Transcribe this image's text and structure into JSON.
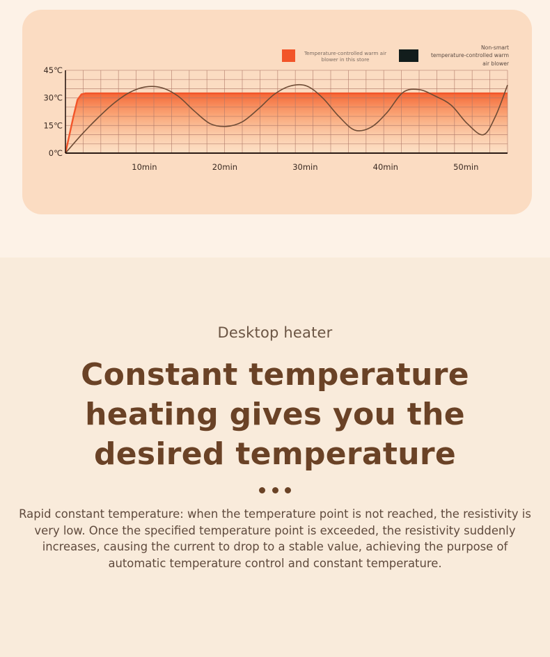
{
  "section": {
    "subtitle": "Desktop heater",
    "headline": "Constant temperature heating gives you the desired temperature",
    "body": "Rapid constant temperature: when the temperature point is not reached, the resistivity is very low. Once the specified temperature point is exceeded, the resistivity suddenly increases, causing the current to drop to a stable value, achieving the purpose of automatic temperature control and constant temperature."
  },
  "chart_data": {
    "type": "line",
    "xlabel": "",
    "ylabel": "",
    "xlim": [
      0,
      55
    ],
    "ylim": [
      0,
      45
    ],
    "x_ticks": [
      10,
      20,
      30,
      40,
      50
    ],
    "x_tick_labels": [
      "10min",
      "20min",
      "30min",
      "40min",
      "50min"
    ],
    "y_ticks": [
      0,
      15,
      30,
      45
    ],
    "y_tick_labels": [
      "0℃",
      "15℃",
      "30℃",
      "45℃"
    ],
    "grid": true,
    "legend_position": "top-right",
    "series": [
      {
        "name": "Temperature-controlled warm air blower in this store",
        "color": "#f2552a",
        "x": [
          0,
          1,
          1.5,
          2,
          2.5,
          55
        ],
        "y": [
          0,
          20,
          29,
          32,
          32.5,
          32.5
        ]
      },
      {
        "name": "Non-smart temperature-controlled warm air blower",
        "color": "#6d4b35",
        "x": [
          0,
          2,
          4,
          6,
          8,
          10,
          12,
          14,
          16,
          18,
          20,
          22,
          24,
          26,
          28,
          30,
          32,
          34,
          36,
          38,
          40,
          42,
          44,
          46,
          48,
          50,
          52,
          53.5,
          55
        ],
        "y": [
          0,
          10,
          19,
          27,
          33,
          36,
          35.5,
          31,
          23,
          16,
          14.5,
          17,
          24,
          32,
          36.5,
          36.5,
          30,
          20,
          12.5,
          14,
          22,
          33,
          34.5,
          31,
          26,
          16,
          10,
          20,
          37
        ]
      }
    ]
  }
}
